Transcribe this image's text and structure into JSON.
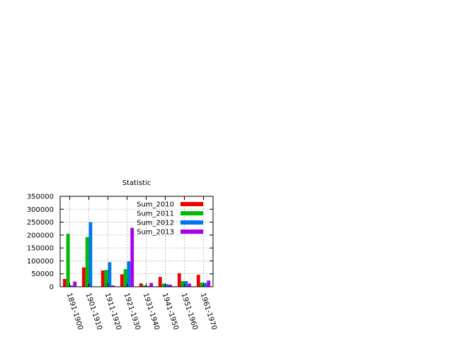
{
  "chart_data": {
    "type": "bar",
    "title": "Statistic",
    "xlabel": "",
    "ylabel": "",
    "categories": [
      "1891-1900",
      "1901-1910",
      "1911-1920",
      "1921-1930",
      "1931-1940",
      "1941-1950",
      "1951-1960",
      "1961-1970"
    ],
    "series": [
      {
        "name": "Sum_2010",
        "color": "#ee0000",
        "values": [
          30000,
          75000,
          63000,
          48000,
          13000,
          38000,
          52000,
          46000
        ]
      },
      {
        "name": "Sum_2011",
        "color": "#00bb00",
        "values": [
          205000,
          192000,
          65000,
          68000,
          5000,
          12000,
          22000,
          16000
        ]
      },
      {
        "name": "Sum_2012",
        "color": "#0077ee",
        "values": [
          5000,
          250000,
          95000,
          98000,
          3000,
          10000,
          22000,
          15000
        ]
      },
      {
        "name": "Sum_2013",
        "color": "#aa00ee",
        "values": [
          20000,
          0,
          5000,
          228000,
          15000,
          8000,
          12000,
          24000
        ]
      }
    ],
    "ylim": [
      0,
      350000
    ],
    "yticks": [
      0,
      50000,
      100000,
      150000,
      200000,
      250000,
      300000,
      350000
    ],
    "grid": true,
    "legend": "top-right"
  }
}
